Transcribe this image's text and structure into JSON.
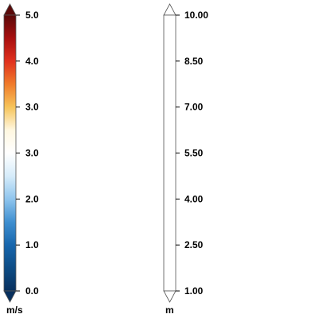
{
  "colorbars": [
    {
      "id": "speed",
      "unit": "m/s",
      "tick_labels": [
        "5.0",
        "4.0",
        "3.0",
        "3.0",
        "2.0",
        "1.0",
        "0.0"
      ],
      "gradient": [
        "#5a0a0a",
        "#a80f0f",
        "#e0301e",
        "#f07b2a",
        "#f6c45a",
        "#fff7e0",
        "#ffffff",
        "#d6ecfa",
        "#8fc5ee",
        "#3f8fd0",
        "#1766ad",
        "#0d4c85",
        "#08305e"
      ],
      "extend_colors": {
        "top": "#5a0a0a",
        "bottom": "#08305e"
      }
    },
    {
      "id": "height",
      "unit": "m",
      "tick_labels": [
        "10.00",
        "8.50",
        "7.00",
        "5.50",
        "4.00",
        "2.50",
        "1.00"
      ],
      "gradient": [
        "#ffffff",
        "#ffffff"
      ],
      "extend_colors": {
        "top": "#ffffff",
        "bottom": "#ffffff"
      }
    }
  ]
}
